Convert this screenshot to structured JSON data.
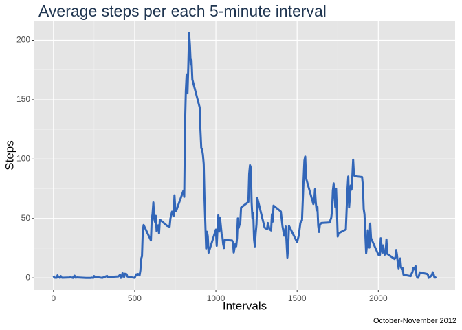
{
  "chart_data": {
    "type": "line",
    "title": "Average steps per each 5-minute interval",
    "x_label": "Intervals",
    "y_label": "Steps",
    "caption": "October-November 2012",
    "color": "#3266b8",
    "grid": true,
    "xlim": [
      -117.75,
      2472.75
    ],
    "xticks": [
      0,
      500,
      1000,
      1500,
      2000
    ],
    "ylim": [
      -10.3,
      216.5
    ],
    "yticks": [
      0,
      50,
      100,
      150,
      200
    ],
    "x": [
      0,
      5,
      10,
      15,
      20,
      25,
      30,
      35,
      40,
      45,
      50,
      55,
      100,
      105,
      110,
      115,
      120,
      125,
      130,
      135,
      140,
      145,
      150,
      200,
      230,
      235,
      245,
      250,
      255,
      300,
      330,
      335,
      400,
      410,
      415,
      420,
      425,
      435,
      440,
      450,
      455,
      500,
      505,
      510,
      515,
      520,
      525,
      530,
      535,
      540,
      545,
      550,
      555,
      600,
      605,
      610,
      615,
      620,
      625,
      630,
      635,
      640,
      645,
      650,
      655,
      700,
      715,
      720,
      730,
      740,
      745,
      750,
      755,
      800,
      805,
      810,
      815,
      820,
      825,
      830,
      835,
      840,
      845,
      850,
      855,
      900,
      905,
      910,
      915,
      920,
      925,
      930,
      935,
      940,
      945,
      950,
      955,
      1000,
      1005,
      1010,
      1015,
      1020,
      1025,
      1030,
      1035,
      1040,
      1045,
      1050,
      1055,
      1100,
      1105,
      1110,
      1115,
      1120,
      1125,
      1130,
      1135,
      1140,
      1145,
      1150,
      1155,
      1200,
      1205,
      1210,
      1215,
      1220,
      1225,
      1230,
      1235,
      1240,
      1245,
      1250,
      1255,
      1300,
      1315,
      1320,
      1330,
      1340,
      1345,
      1350,
      1355,
      1400,
      1410,
      1420,
      1430,
      1440,
      1445,
      1450,
      1500,
      1510,
      1520,
      1525,
      1530,
      1535,
      1540,
      1545,
      1550,
      1555,
      1600,
      1605,
      1610,
      1615,
      1620,
      1625,
      1630,
      1635,
      1640,
      1645,
      1650,
      1700,
      1710,
      1715,
      1720,
      1725,
      1730,
      1735,
      1740,
      1745,
      1750,
      1755,
      1800,
      1805,
      1810,
      1815,
      1820,
      1825,
      1830,
      1835,
      1840,
      1845,
      1850,
      1855,
      1900,
      1905,
      1910,
      1915,
      1920,
      1925,
      1930,
      1935,
      1940,
      1945,
      1950,
      1955,
      2000,
      2005,
      2010,
      2015,
      2020,
      2025,
      2030,
      2035,
      2040,
      2045,
      2050,
      2055,
      2100,
      2105,
      2110,
      2115,
      2120,
      2125,
      2130,
      2135,
      2140,
      2145,
      2150,
      2155,
      2200,
      2205,
      2210,
      2215,
      2220,
      2225,
      2230,
      2235,
      2240,
      2245,
      2250,
      2255,
      2300,
      2305,
      2310,
      2315,
      2320,
      2325,
      2330,
      2335,
      2340,
      2345,
      2350,
      2355
    ],
    "values": [
      1.7,
      0.3,
      0.1,
      0.2,
      0.1,
      2.1,
      0.5,
      0.9,
      0,
      1.5,
      0.3,
      0.1,
      0.3,
      0.7,
      0.2,
      0.3,
      0,
      1.1,
      1.8,
      0.2,
      0.2,
      0.4,
      0.3,
      0,
      0,
      0.2,
      0,
      1.5,
      0.9,
      0,
      1.6,
      0.7,
      1.2,
      2.6,
      0,
      0.3,
      4,
      0.7,
      3.5,
      3.1,
      1.1,
      0,
      1.6,
      3,
      2.2,
      3.3,
      3,
      2.1,
      6.1,
      16,
      18.3,
      39.5,
      44.5,
      31.5,
      49.3,
      53.8,
      63.5,
      50,
      47.1,
      52.2,
      39.3,
      44,
      44.2,
      37.4,
      49,
      43.8,
      43,
      49.9,
      55.7,
      52.3,
      69.5,
      57.8,
      56.2,
      73.4,
      68.2,
      129.4,
      157.5,
      171.2,
      155.4,
      177.3,
      206.2,
      195.9,
      179.6,
      183.4,
      167,
      143.5,
      124,
      109.1,
      108.1,
      103.7,
      95.9,
      66.2,
      45.2,
      24.8,
      38.8,
      35,
      21.1,
      40.6,
      27,
      42.4,
      52.7,
      38.9,
      50.8,
      44.3,
      37.4,
      34.7,
      28.3,
      25.1,
      31.9,
      31.4,
      29.7,
      21.3,
      25.5,
      28.4,
      26.5,
      33.4,
      50,
      42,
      44.6,
      46,
      59.2,
      63.9,
      87.7,
      94.8,
      92.8,
      63.4,
      50.2,
      54.5,
      32.4,
      26.5,
      37.7,
      45.1,
      67.3,
      42.3,
      41,
      46.2,
      40.9,
      39.9,
      53.5,
      47.3,
      60.8,
      55.8,
      43.6,
      35.5,
      43.2,
      17.1,
      26.1,
      43.8,
      30,
      35.5,
      46,
      47.8,
      48.1,
      65.3,
      82.9,
      98.7,
      102.1,
      84,
      62.1,
      64.1,
      74.5,
      63.2,
      56.9,
      59.8,
      43.9,
      38.6,
      44.7,
      45.5,
      46.2,
      46.6,
      50.5,
      56.5,
      73.4,
      79.5,
      68.9,
      59.7,
      75.1,
      56.5,
      34.8,
      37.5,
      40.7,
      58,
      74.7,
      85.3,
      59.3,
      67.8,
      77.7,
      74.2,
      85.3,
      99.5,
      86.6,
      85.6,
      84.9,
      77.8,
      58,
      53.4,
      36.3,
      20.7,
      27.4,
      40,
      30.2,
      25.5,
      45.7,
      33.5,
      19.6,
      19,
      19.3,
      33.3,
      26.8,
      21.2,
      27.3,
      21.3,
      19.5,
      21.3,
      32.3,
      20.2,
      15.9,
      17.2,
      23.5,
      19.2,
      12.5,
      8,
      14.7,
      16.3,
      8.7,
      7.8,
      8.1,
      2.6,
      1.5,
      3.7,
      4.8,
      8.5,
      7.1,
      8.7,
      9.8,
      2.2,
      0.3,
      0.1,
      1.6,
      4.6,
      3.3,
      2.8,
      0,
      0.8,
      1,
      1.6,
      2.6,
      4.7,
      3.3,
      0.6,
      0.2,
      1.1
    ]
  }
}
